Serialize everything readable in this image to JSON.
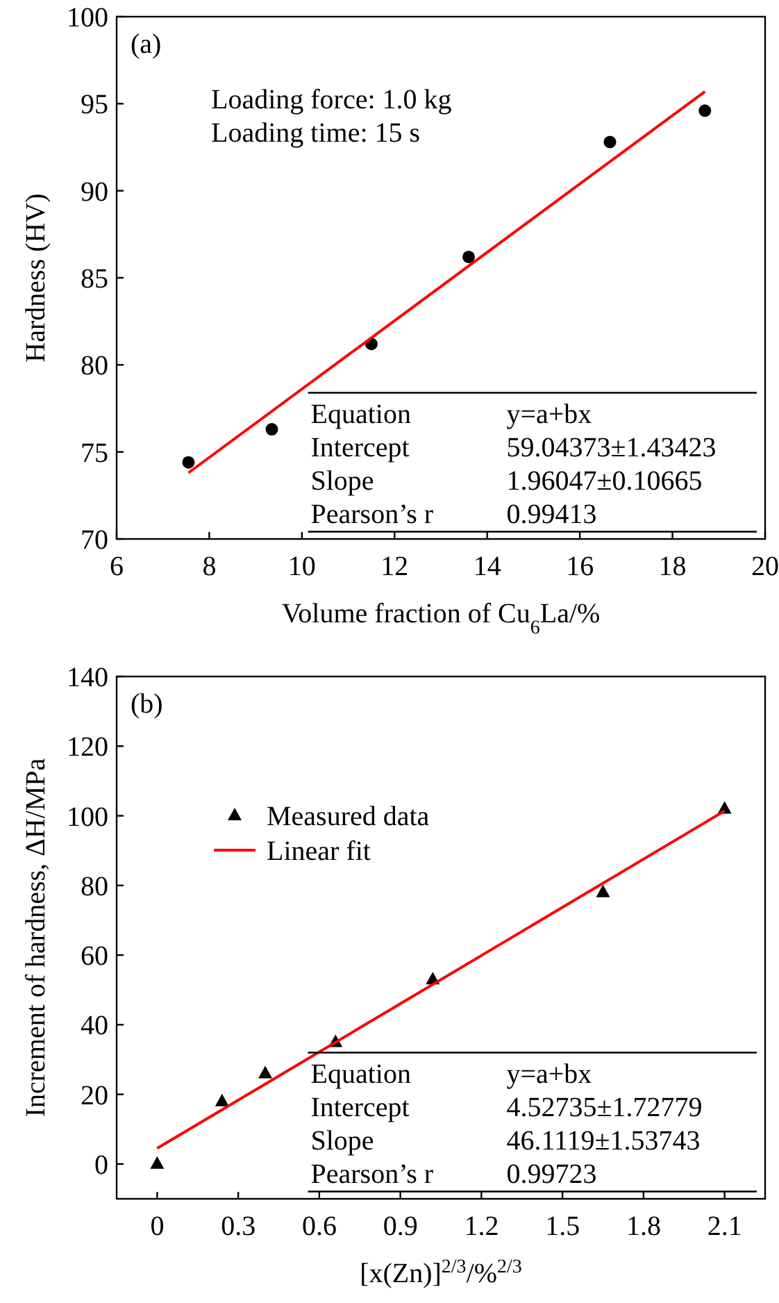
{
  "chart_data": [
    {
      "type": "scatter",
      "xlabel": "Volume fraction of Cu$_{6}$La/%",
      "ylabel": "Hardness (HV)",
      "xlim": [
        6,
        20
      ],
      "ylim": [
        70,
        100
      ],
      "xticks": [
        6,
        8,
        10,
        12,
        14,
        16,
        18,
        20
      ],
      "yticks": [
        70,
        75,
        80,
        85,
        90,
        95,
        100
      ],
      "grid": false,
      "legend": false,
      "annotations": [
        "(a)",
        "Loading force: 1.0 kg",
        "Loading time: 15 s",
        "Equation",
        "y=a+bx",
        "Intercept",
        "59.04373±1.43423",
        "Slope",
        "1.96047±0.10665",
        "Pearson’s r",
        "0.99413"
      ],
      "series": [
        {
          "color": "#000000",
          "marker": "circle",
          "x": [
            7.55,
            9.35,
            11.5,
            13.6,
            16.65,
            18.7
          ],
          "values": [
            74.4,
            76.3,
            81.2,
            86.2,
            92.8,
            94.6
          ]
        },
        {
          "type": "line",
          "color": "#ff0000",
          "marker": "none",
          "line_style": "solid",
          "x": [
            7.55,
            18.7
          ],
          "values": [
            73.8,
            95.7
          ]
        }
      ]
    },
    {
      "type": "scatter",
      "xlabel": "[x(Zn)]$^{2/3}$/%$^{2/3}$",
      "ylabel": "Increment of hardness, ΔH/MPa",
      "xlim": [
        -0.15,
        2.25
      ],
      "ylim": [
        -10,
        140
      ],
      "xticks": [
        0,
        0.3,
        0.6,
        0.9,
        1.2,
        1.5,
        1.8,
        2.1
      ],
      "yticks": [
        0,
        20,
        40,
        60,
        80,
        100,
        120,
        140
      ],
      "grid": false,
      "legend": "top left",
      "annotations": [
        "(b)",
        "Equation",
        "y=a+bx",
        "Intercept",
        "4.52735±1.72779",
        "Slope",
        "46.1119±1.53743",
        "Pearson’s r",
        "0.99723"
      ],
      "series": [
        {
          "name": "Measured data",
          "color": "#000000",
          "marker": "triangle",
          "x": [
            0,
            0.24,
            0.4,
            0.66,
            1.02,
            1.65,
            2.1
          ],
          "values": [
            0,
            18,
            26,
            35,
            53,
            78,
            102
          ]
        },
        {
          "name": "Linear fit",
          "type": "line",
          "color": "#ff0000",
          "marker": "none",
          "line_style": "solid",
          "x": [
            0,
            2.1
          ],
          "values": [
            4.5,
            101.4
          ]
        }
      ]
    }
  ]
}
